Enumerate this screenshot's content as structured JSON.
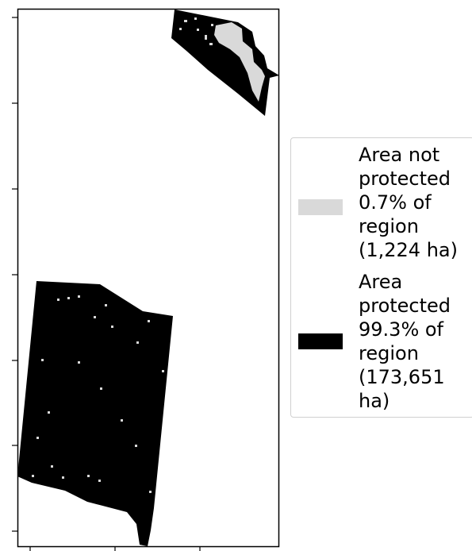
{
  "legend": {
    "items": [
      {
        "label": "Area not protected 0.7% of region (1,224 ha)",
        "swatch_color": "#d9d9d9",
        "category": "not-protected",
        "percent_of_region": 0.7,
        "area_ha": 1224
      },
      {
        "label": "Area protected 99.3% of region (173,651 ha)",
        "swatch_color": "#000000",
        "category": "protected",
        "percent_of_region": 99.3,
        "area_ha": 173651
      }
    ]
  },
  "colors": {
    "protected": "#000000",
    "not_protected": "#d9d9d9",
    "frame": "#000000",
    "background": "#ffffff"
  }
}
